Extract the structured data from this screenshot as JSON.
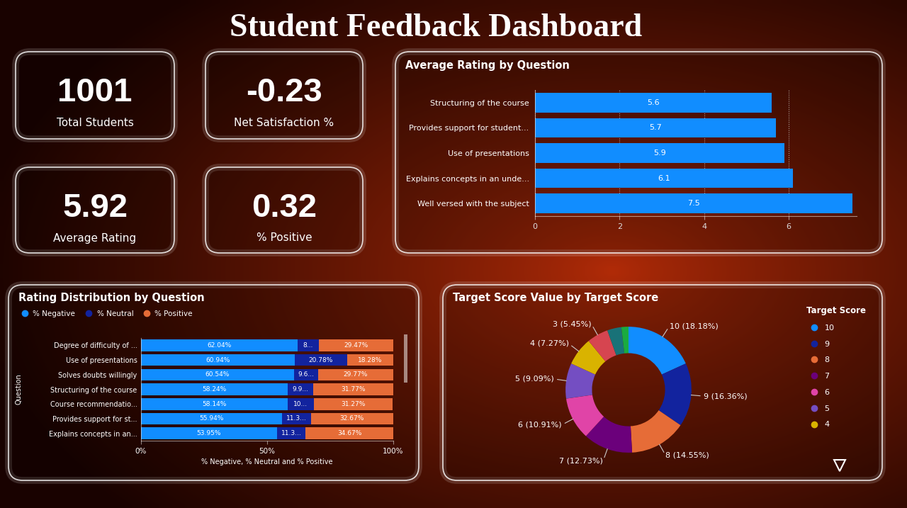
{
  "title": "Student Feedback Dashboard",
  "kpis": [
    {
      "value": 1001,
      "label": "Total Students"
    },
    {
      "value": -0.23,
      "label": "Net Satisfaction %"
    },
    {
      "value": 5.92,
      "label": "Average Rating"
    },
    {
      "value": 0.32,
      "label": "% Positive"
    }
  ],
  "chart_data": [
    {
      "type": "bar",
      "title": "Average Rating by Question",
      "orientation": "horizontal",
      "categories": [
        "Structuring of the course",
        "Provides support for student...",
        "Use of presentations",
        "Explains concepts in an unde...",
        "Well versed with the subject"
      ],
      "values": [
        5.6,
        5.7,
        5.9,
        6.1,
        7.5
      ],
      "color": "#118DFF",
      "xlim": [
        0,
        7.6
      ],
      "xticks": [
        0,
        2,
        4,
        6
      ],
      "grid": true,
      "data_labels": true
    },
    {
      "type": "bar",
      "title": "Rating Distribution by Question",
      "orientation": "horizontal",
      "stacked": true,
      "categories": [
        "Degree of difficulty of ...",
        "Use of presentations",
        "Solves doubts willingly",
        "Structuring of the course",
        "Course recommendatio...",
        "Provides support for st...",
        "Explains concepts in an..."
      ],
      "series": [
        {
          "name": "% Negative",
          "color": "#118DFF",
          "values": [
            62.04,
            60.94,
            60.54,
            58.24,
            58.14,
            55.94,
            53.95
          ],
          "value_labels": [
            "62.04%",
            "60.94%",
            "60.54%",
            "58.24%",
            "58.14%",
            "55.94%",
            "53.95%"
          ]
        },
        {
          "name": "% Neutral",
          "color": "#12239E",
          "values": [
            8.49,
            20.78,
            9.64,
            9.94,
            10.41,
            11.34,
            11.34
          ],
          "value_labels": [
            "8...",
            "20.78%",
            "9.6...",
            "9.9...",
            "10...",
            "11.3...",
            "11.3..."
          ]
        },
        {
          "name": "% Positive",
          "color": "#E66C37",
          "values": [
            29.47,
            18.28,
            29.77,
            31.77,
            31.27,
            32.67,
            34.67
          ],
          "value_labels": [
            "29.47%",
            "18.28%",
            "29.77%",
            "31.77%",
            "31.27%",
            "32.67%",
            "34.67%"
          ]
        }
      ],
      "xlim": [
        0,
        100
      ],
      "xticks": [
        {
          "value": 0,
          "label": "0%"
        },
        {
          "value": 50,
          "label": "50%"
        },
        {
          "value": 100,
          "label": "100%"
        }
      ],
      "xlabel": "% Negative, % Neutral and % Positive",
      "ylabel": "Question",
      "legend": "upper left",
      "data_labels": true
    },
    {
      "type": "pie",
      "title": "Target Score Value by Target Score",
      "categories": [
        "10",
        "9",
        "8",
        "7",
        "6",
        "5",
        "4",
        null,
        null,
        null
      ],
      "values": [
        18.18,
        16.36,
        14.55,
        12.73,
        10.91,
        9.09,
        7.27,
        5.45,
        3.64,
        1.82
      ],
      "value_labels": [
        "10 (18.18%)",
        "9 (16.36%)",
        "8 (14.55%)",
        "7 (12.73%)",
        "6 (10.91%)",
        "5 (9.09%)",
        "4 (7.27%)",
        "3 (5.45%)",
        null,
        null
      ],
      "colors": [
        "#118DFF",
        "#12239E",
        "#E66C37",
        "#6B007B",
        "#E044A7",
        "#744EC2",
        "#D9B300",
        "#D64550",
        "#197278",
        "#1AAB40"
      ],
      "legend": "upper right",
      "legend_title": "Target Score",
      "data_labels": true
    }
  ]
}
